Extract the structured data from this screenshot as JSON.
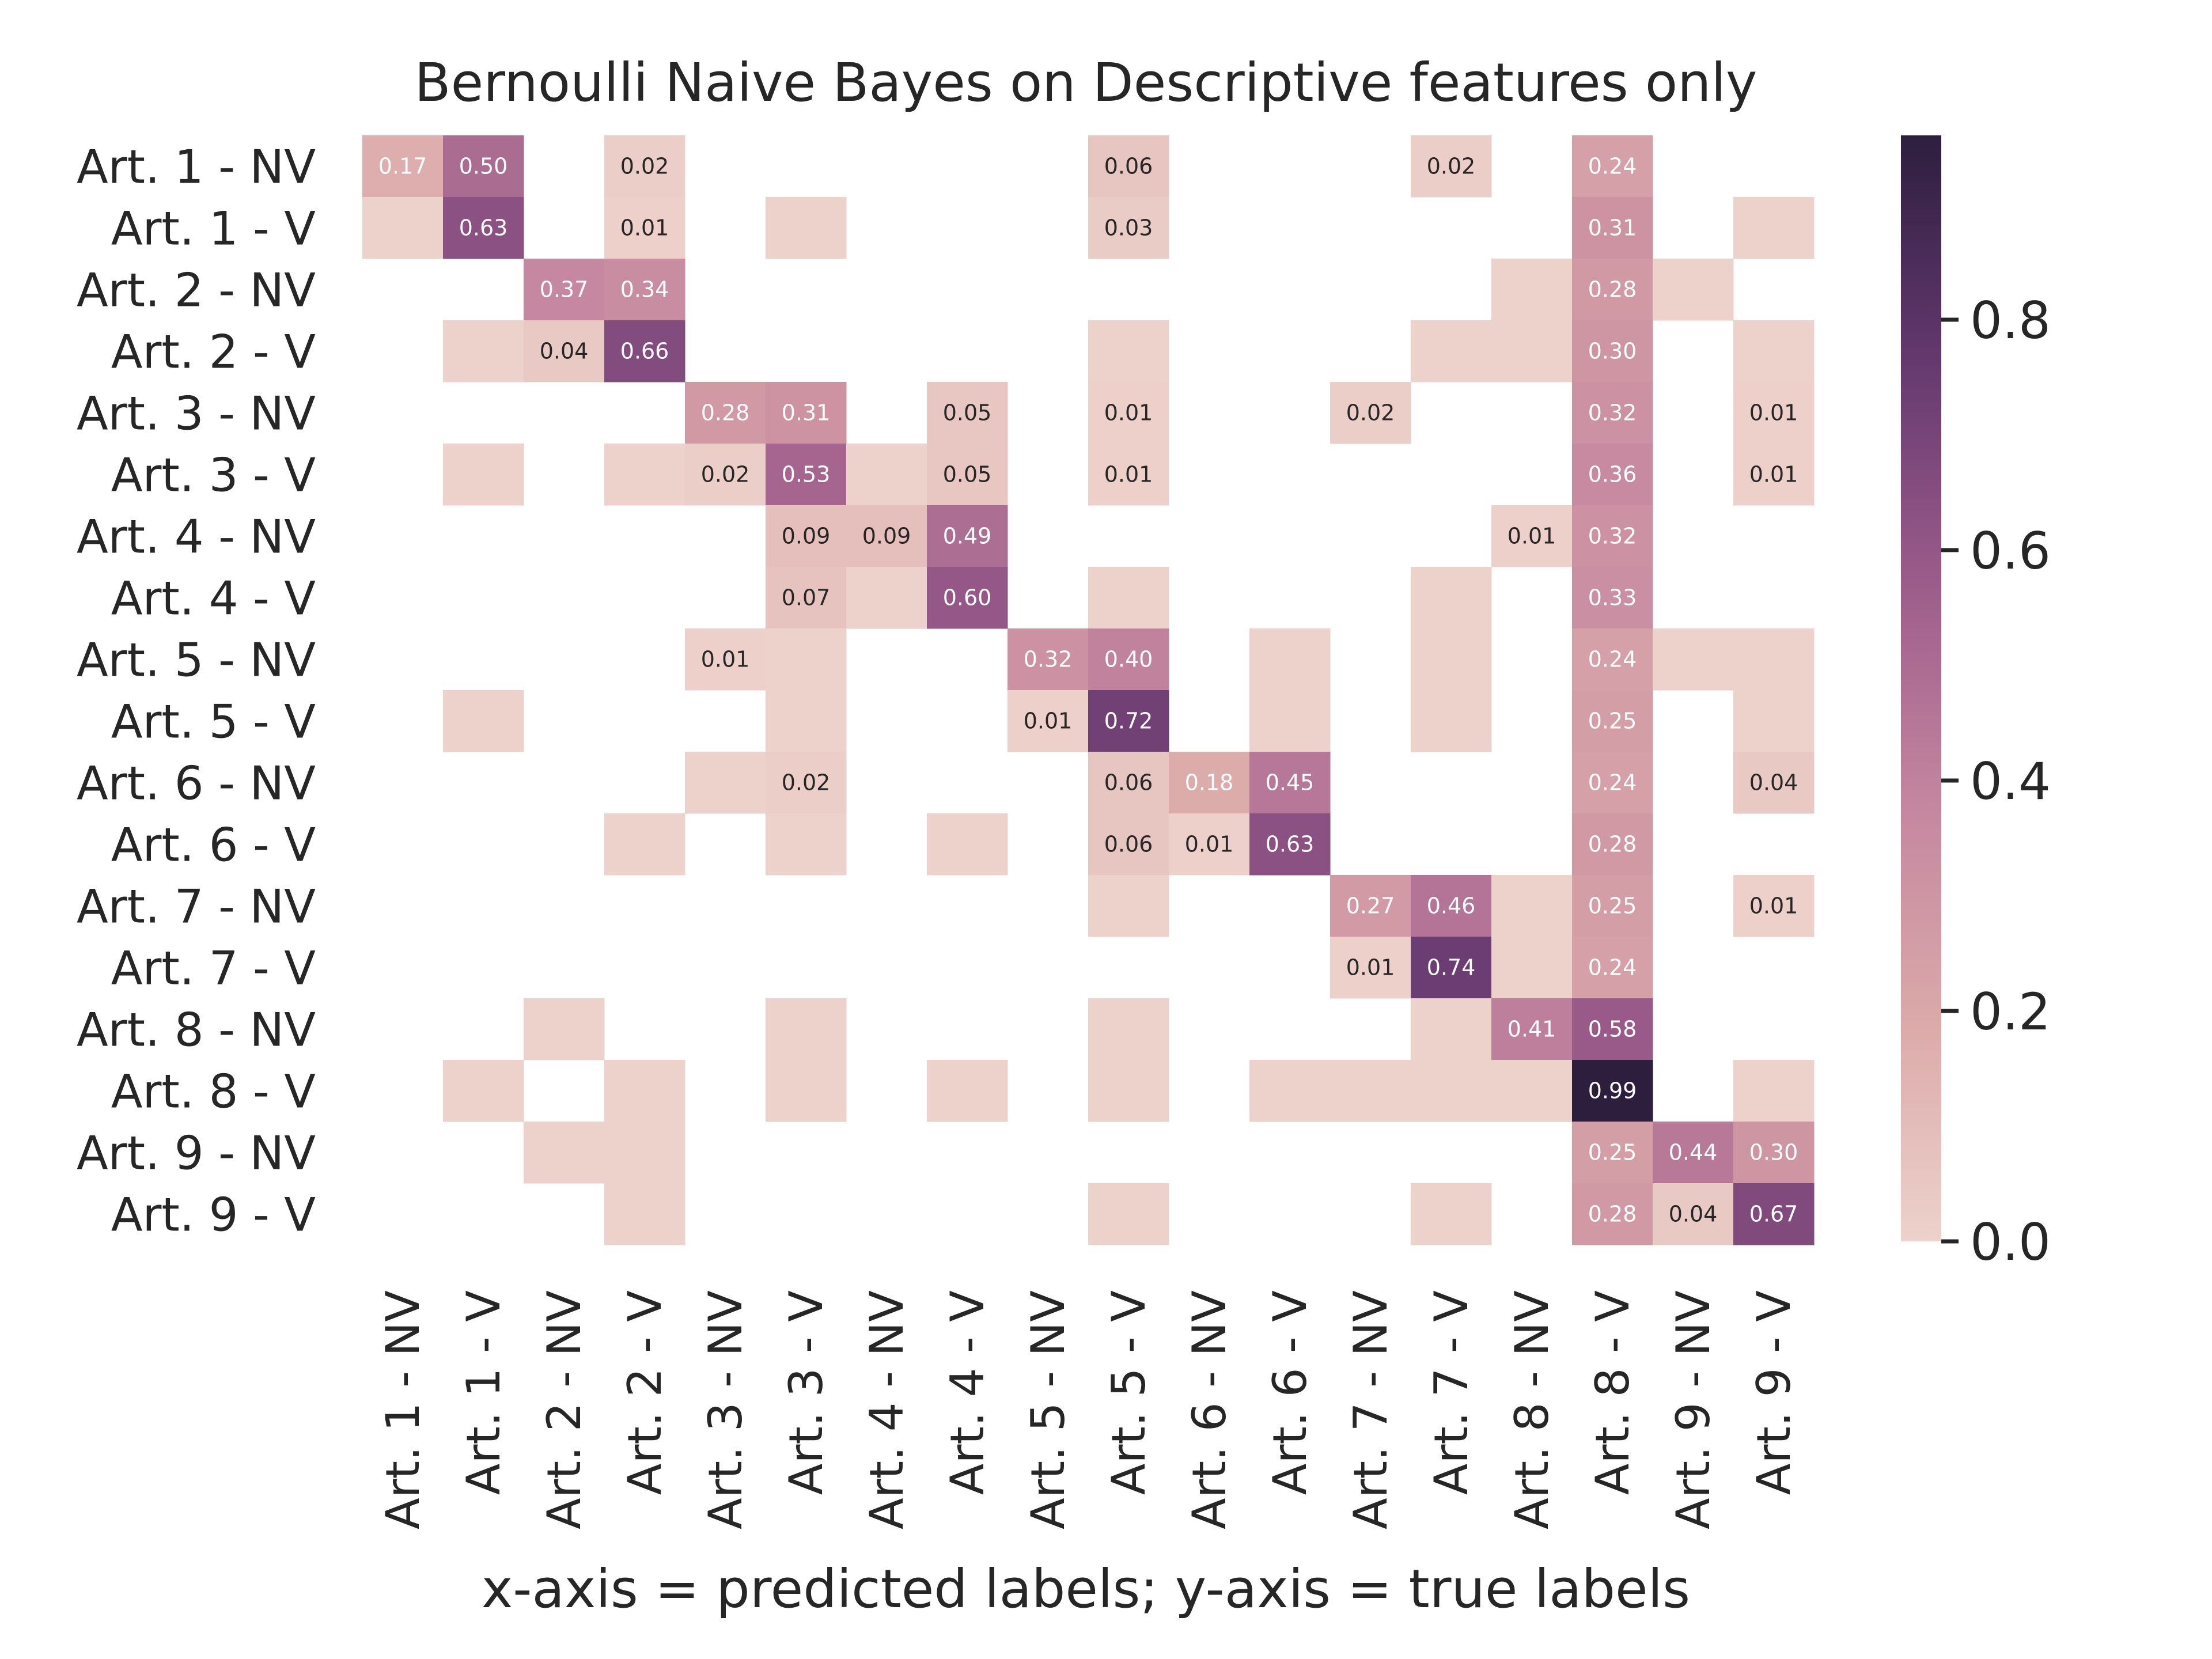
{
  "chart_data": {
    "type": "heatmap",
    "title": "Bernoulli Naive Bayes on Descriptive features only",
    "xlabel": "x-axis = predicted labels; y-axis = true labels",
    "ylabel": "",
    "x_categories": [
      "Art. 1 - NV",
      "Art. 1 - V",
      "Art. 2 - NV",
      "Art. 2 - V",
      "Art. 3 - NV",
      "Art. 3 - V",
      "Art. 4 - NV",
      "Art. 4 - V",
      "Art. 5 - NV",
      "Art. 5 - V",
      "Art. 6 - NV",
      "Art. 6 - V",
      "Art. 7 - NV",
      "Art. 7 - V",
      "Art. 8 - NV",
      "Art. 8 - V",
      "Art. 9 - NV",
      "Art. 9 - V"
    ],
    "y_categories": [
      "Art. 1 - NV",
      "Art. 1 - V",
      "Art. 2 - NV",
      "Art. 2 - V",
      "Art. 3 - NV",
      "Art. 3 - V",
      "Art. 4 - NV",
      "Art. 4 - V",
      "Art. 5 - NV",
      "Art. 5 - V",
      "Art. 6 - NV",
      "Art. 6 - V",
      "Art. 7 - NV",
      "Art. 7 - V",
      "Art. 8 - NV",
      "Art. 8 - V",
      "Art. 9 - NV",
      "Art. 9 - V"
    ],
    "values": [
      [
        0.17,
        0.5,
        null,
        0.02,
        null,
        null,
        null,
        null,
        null,
        0.06,
        null,
        null,
        null,
        0.02,
        null,
        0.24,
        null,
        null
      ],
      [
        0.0,
        0.63,
        null,
        0.01,
        null,
        0.0,
        null,
        null,
        null,
        0.03,
        null,
        null,
        null,
        null,
        null,
        0.31,
        null,
        0.0
      ],
      [
        null,
        null,
        0.37,
        0.34,
        null,
        null,
        null,
        null,
        null,
        null,
        null,
        null,
        null,
        null,
        0.0,
        0.28,
        0.0,
        null
      ],
      [
        null,
        0.0,
        0.04,
        0.66,
        null,
        null,
        null,
        null,
        null,
        0.0,
        null,
        null,
        null,
        0.0,
        0.0,
        0.3,
        null,
        0.0
      ],
      [
        null,
        null,
        null,
        null,
        0.28,
        0.31,
        null,
        0.05,
        null,
        0.01,
        null,
        null,
        0.02,
        null,
        null,
        0.32,
        null,
        0.01
      ],
      [
        null,
        0.0,
        null,
        0.0,
        0.02,
        0.53,
        0.0,
        0.05,
        null,
        0.01,
        null,
        null,
        null,
        null,
        null,
        0.36,
        null,
        0.01
      ],
      [
        null,
        null,
        null,
        null,
        null,
        0.09,
        0.09,
        0.49,
        null,
        null,
        null,
        null,
        null,
        null,
        0.01,
        0.32,
        null,
        null
      ],
      [
        null,
        null,
        null,
        null,
        null,
        0.07,
        0.0,
        0.6,
        null,
        0.0,
        null,
        null,
        null,
        0.0,
        null,
        0.33,
        null,
        null
      ],
      [
        null,
        null,
        null,
        null,
        0.01,
        0.0,
        null,
        null,
        0.32,
        0.4,
        null,
        0.0,
        null,
        0.0,
        null,
        0.24,
        0.0,
        0.0
      ],
      [
        null,
        0.0,
        null,
        null,
        null,
        0.0,
        null,
        null,
        0.01,
        0.72,
        null,
        0.0,
        null,
        0.0,
        null,
        0.25,
        null,
        0.0
      ],
      [
        null,
        null,
        null,
        null,
        0.0,
        0.02,
        null,
        null,
        null,
        0.06,
        0.18,
        0.45,
        null,
        null,
        null,
        0.24,
        null,
        0.04
      ],
      [
        null,
        null,
        null,
        0.0,
        null,
        0.0,
        null,
        0.0,
        null,
        0.06,
        0.01,
        0.63,
        null,
        null,
        null,
        0.28,
        null,
        null
      ],
      [
        null,
        null,
        null,
        null,
        null,
        null,
        null,
        null,
        null,
        0.0,
        null,
        null,
        0.27,
        0.46,
        0.0,
        0.25,
        null,
        0.01
      ],
      [
        null,
        null,
        null,
        null,
        null,
        null,
        null,
        null,
        null,
        null,
        null,
        null,
        0.01,
        0.74,
        0.0,
        0.24,
        null,
        null
      ],
      [
        null,
        null,
        0.0,
        null,
        null,
        0.0,
        null,
        null,
        null,
        0.0,
        null,
        null,
        null,
        0.0,
        0.41,
        0.58,
        null,
        null
      ],
      [
        null,
        0.0,
        null,
        0.0,
        null,
        0.0,
        null,
        0.0,
        null,
        0.0,
        null,
        0.0,
        0.0,
        0.0,
        0.0,
        0.99,
        null,
        0.0
      ],
      [
        null,
        null,
        0.0,
        0.0,
        null,
        null,
        null,
        null,
        null,
        null,
        null,
        null,
        null,
        null,
        null,
        0.25,
        0.44,
        0.3
      ],
      [
        null,
        null,
        null,
        0.0,
        null,
        null,
        null,
        null,
        null,
        0.0,
        null,
        null,
        null,
        0.0,
        null,
        0.28,
        0.04,
        0.67
      ]
    ],
    "annotation_format": "2 decimals; cells with value 0.00 are filled but unlabeled; empty cells are blank",
    "colorbar": {
      "min": 0.0,
      "max": 0.96,
      "ticks": [
        0.0,
        0.2,
        0.4,
        0.6,
        0.8
      ],
      "tick_labels": [
        "0.0",
        "0.2",
        "0.4",
        "0.6",
        "0.8"
      ],
      "colormap": "cubehelix light (pink to dark purple)"
    },
    "colors": {
      "low": "#edd2cb",
      "mid": "#b96f95",
      "high": "#2d1e3e",
      "text": "#262626"
    },
    "grid": false,
    "legend": "colorbar right"
  }
}
